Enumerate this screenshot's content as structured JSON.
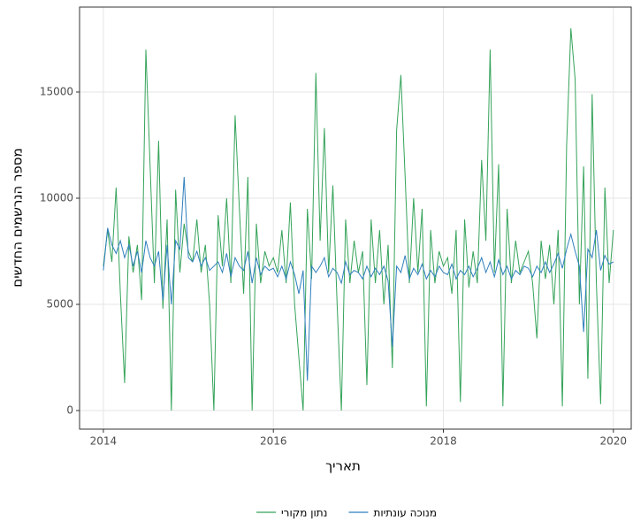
{
  "chart_data": {
    "type": "line",
    "x_label": "תאריך",
    "y_label": "מספר הנרשמים החדשים",
    "x": [
      2014,
      2014.05,
      2014.1,
      2014.15,
      2014.2,
      2014.25,
      2014.3,
      2014.35,
      2014.4,
      2014.45,
      2014.5,
      2014.55,
      2014.6,
      2014.65,
      2014.7,
      2014.75,
      2014.8,
      2014.85,
      2014.9,
      2014.95,
      2015,
      2015.05,
      2015.1,
      2015.15,
      2015.2,
      2015.25,
      2015.3,
      2015.35,
      2015.4,
      2015.45,
      2015.5,
      2015.55,
      2015.6,
      2015.65,
      2015.7,
      2015.75,
      2015.8,
      2015.85,
      2015.9,
      2015.95,
      2016,
      2016.05,
      2016.1,
      2016.15,
      2016.2,
      2016.25,
      2016.3,
      2016.35,
      2016.4,
      2016.45,
      2016.5,
      2016.55,
      2016.6,
      2016.65,
      2016.7,
      2016.75,
      2016.8,
      2016.85,
      2016.9,
      2016.95,
      2017,
      2017.05,
      2017.1,
      2017.15,
      2017.2,
      2017.25,
      2017.3,
      2017.35,
      2017.4,
      2017.45,
      2017.5,
      2017.55,
      2017.6,
      2017.65,
      2017.7,
      2017.75,
      2017.8,
      2017.85,
      2017.9,
      2017.95,
      2018,
      2018.05,
      2018.1,
      2018.15,
      2018.2,
      2018.25,
      2018.3,
      2018.35,
      2018.4,
      2018.45,
      2018.5,
      2018.55,
      2018.6,
      2018.65,
      2018.7,
      2018.75,
      2018.8,
      2018.85,
      2018.9,
      2018.95,
      2019,
      2019.05,
      2019.1,
      2019.15,
      2019.2,
      2019.25,
      2019.3,
      2019.35,
      2019.4,
      2019.45,
      2019.5,
      2019.55,
      2019.6,
      2019.65,
      2019.7,
      2019.75,
      2019.8,
      2019.85,
      2019.9,
      2019.95,
      2020
    ],
    "series": [
      {
        "name": "נתון מקורי",
        "color": "#35a35a",
        "values": [
          6800,
          8500,
          7000,
          10500,
          5500,
          1300,
          8200,
          6500,
          7800,
          5200,
          17000,
          11500,
          6000,
          12700,
          4800,
          9000,
          0,
          10400,
          6500,
          8800,
          7500,
          7000,
          9000,
          6500,
          7800,
          5000,
          0,
          9200,
          6800,
          10000,
          6000,
          13900,
          9500,
          5500,
          11000,
          0,
          8800,
          6000,
          7500,
          6800,
          7200,
          6500,
          8500,
          6000,
          9800,
          5000,
          2500,
          0,
          9500,
          6200,
          15900,
          8000,
          13300,
          6500,
          10600,
          5000,
          0,
          9000,
          6000,
          8000,
          6500,
          7500,
          1200,
          9000,
          6000,
          8500,
          5000,
          7800,
          2000,
          13200,
          15800,
          11000,
          6000,
          10000,
          6500,
          9500,
          200,
          8500,
          6000,
          7500,
          6800,
          7200,
          5500,
          8500,
          400,
          9000,
          5800,
          7500,
          6000,
          11800,
          8000,
          17000,
          6500,
          11600,
          200,
          9500,
          6000,
          8000,
          6500,
          7000,
          7500,
          6000,
          3400,
          8000,
          6200,
          7800,
          5000,
          8500,
          200,
          12500,
          18000,
          15600,
          5000,
          11500,
          1500,
          14900,
          6000,
          300,
          10500,
          6000,
          8500
        ]
      },
      {
        "name": "מנוכה עונתיות",
        "color": "#2e7fbd",
        "values": [
          6600,
          8600,
          7800,
          7400,
          8000,
          7200,
          7800,
          6800,
          7500,
          6500,
          8000,
          7200,
          6800,
          7500,
          5200,
          7800,
          5000,
          8000,
          7600,
          11000,
          7200,
          7000,
          7500,
          6800,
          7200,
          6600,
          6800,
          7000,
          6500,
          7400,
          6300,
          7200,
          6800,
          6600,
          7500,
          6000,
          7200,
          6400,
          6800,
          6600,
          6700,
          6300,
          6800,
          6200,
          7000,
          6400,
          5500,
          6600,
          1400,
          6800,
          6500,
          6800,
          7200,
          6300,
          6700,
          6500,
          6000,
          7000,
          6400,
          6600,
          6500,
          6200,
          6800,
          6300,
          6700,
          6400,
          6800,
          6100,
          3000,
          6800,
          6500,
          7300,
          6200,
          6700,
          6400,
          6900,
          6200,
          6600,
          6300,
          6800,
          6500,
          6400,
          6900,
          6200,
          6600,
          6400,
          6800,
          6300,
          6700,
          7200,
          6500,
          7000,
          6300,
          7100,
          6400,
          6800,
          6200,
          6600,
          6400,
          6800,
          6700,
          6300,
          6800,
          6500,
          7000,
          6500,
          6900,
          7400,
          6700,
          7600,
          8300,
          7500,
          6800,
          3700,
          7600,
          7200,
          8500,
          6600,
          7300,
          6900,
          7000
        ]
      }
    ],
    "xlim": [
      2013.72,
      2020.21
    ],
    "xticks": [
      2014,
      2016,
      2018,
      2020
    ],
    "ylim": [
      -875,
      19000
    ],
    "yticks": [
      0,
      5000,
      10000,
      15000
    ],
    "grid": true,
    "legend": "bottom"
  }
}
